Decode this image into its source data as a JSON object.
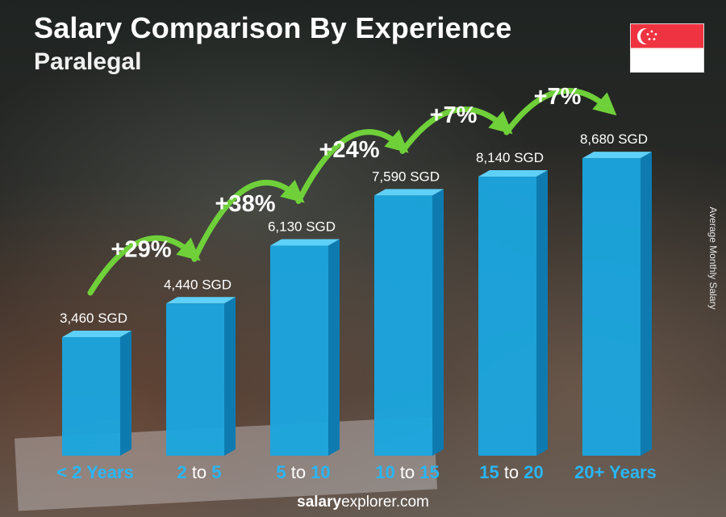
{
  "header": {
    "title": "Salary Comparison By Experience",
    "subtitle": "Paralegal"
  },
  "side_label": "Average Monthly Salary",
  "footer": {
    "brand_a": "salary",
    "brand_b": "explorer",
    "brand_c": ".com"
  },
  "colors": {
    "bar_front": "#1aa7e0",
    "bar_side": "#0e7bb0",
    "bar_top": "#5fd0f7",
    "arrow": "#6fd03a",
    "pct_text": "#ffffff",
    "cat_highlight": "#29b6f6",
    "cat_plain": "#ffffff",
    "flag_red": "#ef3340"
  },
  "chart_data": {
    "type": "bar",
    "title": "Salary Comparison By Experience",
    "subtitle": "Paralegal",
    "ylabel": "Average Monthly Salary",
    "unit": "SGD",
    "categories": [
      {
        "parts": [
          {
            "t": "< 2 Years",
            "hl": true
          }
        ]
      },
      {
        "parts": [
          {
            "t": "2",
            "hl": true
          },
          {
            "t": " to ",
            "hl": false
          },
          {
            "t": "5",
            "hl": true
          }
        ]
      },
      {
        "parts": [
          {
            "t": "5",
            "hl": true
          },
          {
            "t": " to ",
            "hl": false
          },
          {
            "t": "10",
            "hl": true
          }
        ]
      },
      {
        "parts": [
          {
            "t": "10",
            "hl": true
          },
          {
            "t": " to ",
            "hl": false
          },
          {
            "t": "15",
            "hl": true
          }
        ]
      },
      {
        "parts": [
          {
            "t": "15",
            "hl": true
          },
          {
            "t": " to ",
            "hl": false
          },
          {
            "t": "20",
            "hl": true
          }
        ]
      },
      {
        "parts": [
          {
            "t": "20+ Years",
            "hl": true
          }
        ]
      }
    ],
    "category_names": [
      "< 2 Years",
      "2 to 5",
      "5 to 10",
      "10 to 15",
      "15 to 20",
      "20+ Years"
    ],
    "values": [
      3460,
      4440,
      6130,
      7590,
      8140,
      8680
    ],
    "value_labels": [
      "3,460 SGD",
      "4,440 SGD",
      "6,130 SGD",
      "7,590 SGD",
      "8,140 SGD",
      "8,680 SGD"
    ],
    "changes": [
      "+29%",
      "+38%",
      "+24%",
      "+7%",
      "+7%"
    ],
    "ylim": [
      0,
      10000
    ],
    "grid": false,
    "legend": "none"
  }
}
